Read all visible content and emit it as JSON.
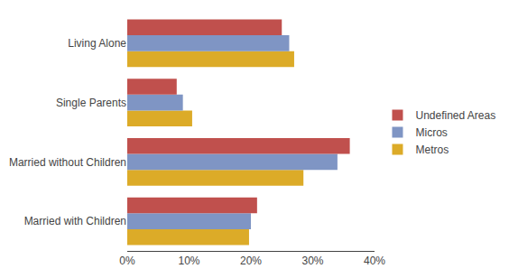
{
  "chart_data": {
    "type": "bar",
    "orientation": "horizontal",
    "categories": [
      "Married with Children",
      "Married without Children",
      "Single Parents",
      "Living Alone"
    ],
    "series": [
      {
        "name": "Undefined Areas",
        "color": "#c0504d",
        "values": [
          0.21,
          0.36,
          0.08,
          0.25
        ]
      },
      {
        "name": "Micros",
        "color": "#7F95C4",
        "values": [
          0.2,
          0.34,
          0.09,
          0.262
        ]
      },
      {
        "name": "Metros",
        "color": "#DCAB28",
        "values": [
          0.197,
          0.285,
          0.105,
          0.27
        ]
      }
    ],
    "xlim": [
      0,
      0.4
    ],
    "xticks": [
      {
        "value": 0,
        "label": "0%"
      },
      {
        "value": 0.1,
        "label": "10%"
      },
      {
        "value": 0.2,
        "label": "20%"
      },
      {
        "value": 0.3,
        "label": "30%"
      },
      {
        "value": 0.4,
        "label": "40%"
      }
    ],
    "grid": false,
    "legend": "right"
  }
}
